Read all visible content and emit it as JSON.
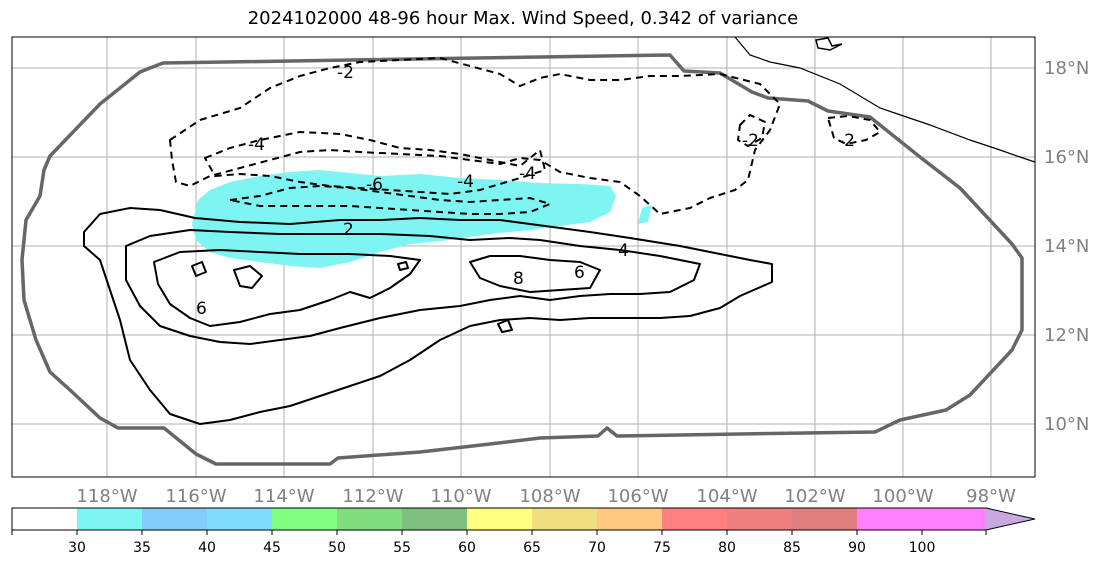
{
  "title": "2024102000 48-96 hour Max. Wind Speed, 0.342 of variance",
  "map": {
    "lat_labels": [
      "18°N",
      "16°N",
      "14°N",
      "12°N",
      "10°N"
    ],
    "lon_labels": [
      "118°W",
      "116°W",
      "114°W",
      "112°W",
      "110°W",
      "108°W",
      "106°W",
      "104°W",
      "102°W",
      "100°W",
      "98°W"
    ],
    "contour_labels": [
      "-2",
      "-4",
      "-6",
      "-4",
      "-4",
      "-2",
      "-2",
      "2",
      "4",
      "6",
      "8",
      "6"
    ],
    "colors": {
      "domain_outline": "#666666",
      "shading_30_35": "#7ff5f3",
      "grid": "#b0b0b0",
      "coastline": "#000000"
    }
  },
  "colorbar": {
    "ticks": [
      "30",
      "35",
      "40",
      "45",
      "50",
      "55",
      "60",
      "65",
      "70",
      "75",
      "80",
      "85",
      "90",
      "100"
    ],
    "colors": [
      "#ffffff",
      "#7ff5f3",
      "#80cdfa",
      "#80defc",
      "#80ff80",
      "#7fdf7f",
      "#7fbf7f",
      "#ffff80",
      "#efdf80",
      "#ffc880",
      "#ff8080",
      "#ef7f7f",
      "#df7f7f",
      "#ff80ff",
      "#c8a8e0"
    ]
  }
}
